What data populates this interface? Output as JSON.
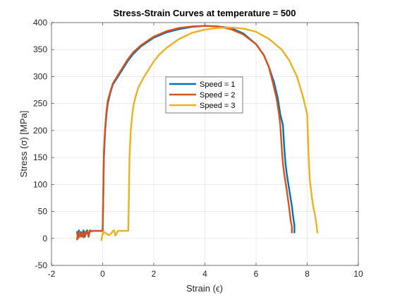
{
  "chart_data": {
    "type": "line",
    "title": "Stress-Strain Curves at temperature = 500",
    "xlabel": "Strain (ϵ)",
    "ylabel": "Stress (σ) [MPa]",
    "xlim": [
      -2,
      10
    ],
    "ylim": [
      -50,
      400
    ],
    "xticks": [
      -2,
      0,
      2,
      4,
      6,
      8,
      10
    ],
    "yticks": [
      -50,
      0,
      50,
      100,
      150,
      200,
      250,
      300,
      350,
      400
    ],
    "xtick_labels": [
      "-2",
      "0",
      "2",
      "4",
      "6",
      "8",
      "10"
    ],
    "ytick_labels": [
      "-50",
      "0",
      "50",
      "100",
      "150",
      "200",
      "250",
      "300",
      "350",
      "400"
    ],
    "grid": true,
    "legend_position": "center",
    "series": [
      {
        "name": "Speed = 1",
        "color": "#0072BD",
        "x": [
          -1.0,
          -0.97,
          -0.93,
          -0.9,
          -0.85,
          -0.8,
          -0.75,
          -0.7,
          -0.65,
          -0.6,
          -0.55,
          -0.5,
          -0.45,
          -0.4,
          -0.2,
          0.0,
          0.02,
          0.05,
          0.1,
          0.15,
          0.2,
          0.3,
          0.4,
          0.6,
          0.8,
          1.0,
          1.2,
          1.5,
          2.0,
          2.5,
          3.0,
          3.5,
          4.0,
          4.5,
          5.0,
          5.5,
          6.0,
          6.3,
          6.5,
          6.7,
          6.85,
          6.95,
          7.05,
          7.1,
          7.15,
          7.2,
          7.3,
          7.4,
          7.45,
          7.5,
          7.5
        ],
        "y": [
          12,
          0,
          15,
          5,
          12,
          4,
          15,
          3,
          12,
          15,
          4,
          15,
          14,
          14,
          14,
          14,
          60,
          150,
          200,
          230,
          250,
          270,
          285,
          300,
          315,
          330,
          342,
          356,
          372,
          382,
          388,
          392,
          394,
          393,
          390,
          380,
          360,
          340,
          318,
          290,
          260,
          230,
          210,
          170,
          140,
          120,
          90,
          60,
          40,
          25,
          11
        ]
      },
      {
        "name": "Speed = 2",
        "color": "#D95319",
        "x": [
          -1.0,
          -0.97,
          -0.93,
          -0.9,
          -0.85,
          -0.8,
          -0.75,
          -0.7,
          -0.65,
          -0.6,
          -0.55,
          -0.5,
          -0.45,
          -0.4,
          -0.2,
          0.0,
          0.02,
          0.05,
          0.1,
          0.15,
          0.2,
          0.3,
          0.4,
          0.6,
          0.8,
          1.0,
          1.2,
          1.5,
          2.0,
          2.5,
          3.0,
          3.5,
          4.0,
          4.5,
          5.0,
          5.5,
          6.0,
          6.3,
          6.5,
          6.65,
          6.8,
          6.9,
          6.95,
          7.0,
          7.05,
          7.1,
          7.2,
          7.3,
          7.35,
          7.4,
          7.4
        ],
        "y": [
          -2,
          10,
          2,
          12,
          3,
          10,
          2,
          12,
          8,
          14,
          3,
          14,
          13,
          14,
          14,
          14,
          70,
          160,
          205,
          235,
          255,
          272,
          287,
          303,
          318,
          333,
          345,
          358,
          374,
          384,
          390,
          393,
          394,
          393,
          388,
          378,
          360,
          340,
          318,
          290,
          260,
          230,
          210,
          170,
          140,
          120,
          90,
          55,
          35,
          22,
          11
        ]
      },
      {
        "name": "Speed = 3",
        "color": "#EDB120",
        "x": [
          -0.05,
          0.0,
          0.02,
          0.05,
          0.15,
          0.25,
          0.35,
          0.4,
          0.45,
          0.5,
          0.55,
          0.6,
          0.7,
          0.8,
          0.95,
          1.0,
          1.02,
          1.05,
          1.1,
          1.15,
          1.2,
          1.3,
          1.4,
          1.6,
          1.8,
          2.0,
          2.2,
          2.5,
          3.0,
          3.5,
          4.0,
          4.5,
          5.0,
          5.5,
          6.0,
          6.5,
          7.0,
          7.3,
          7.6,
          7.85,
          8.0,
          8.05,
          8.1,
          8.15,
          8.2,
          8.25,
          8.3,
          8.35,
          8.4
        ],
        "y": [
          -3,
          10,
          8,
          12,
          9,
          6,
          10,
          14,
          15,
          5,
          10,
          14,
          14,
          14,
          14,
          14,
          60,
          150,
          200,
          225,
          245,
          265,
          280,
          298,
          313,
          328,
          340,
          353,
          370,
          381,
          387,
          390,
          391,
          389,
          383,
          370,
          350,
          330,
          300,
          260,
          230,
          160,
          110,
          90,
          70,
          55,
          45,
          30,
          11
        ]
      }
    ]
  }
}
